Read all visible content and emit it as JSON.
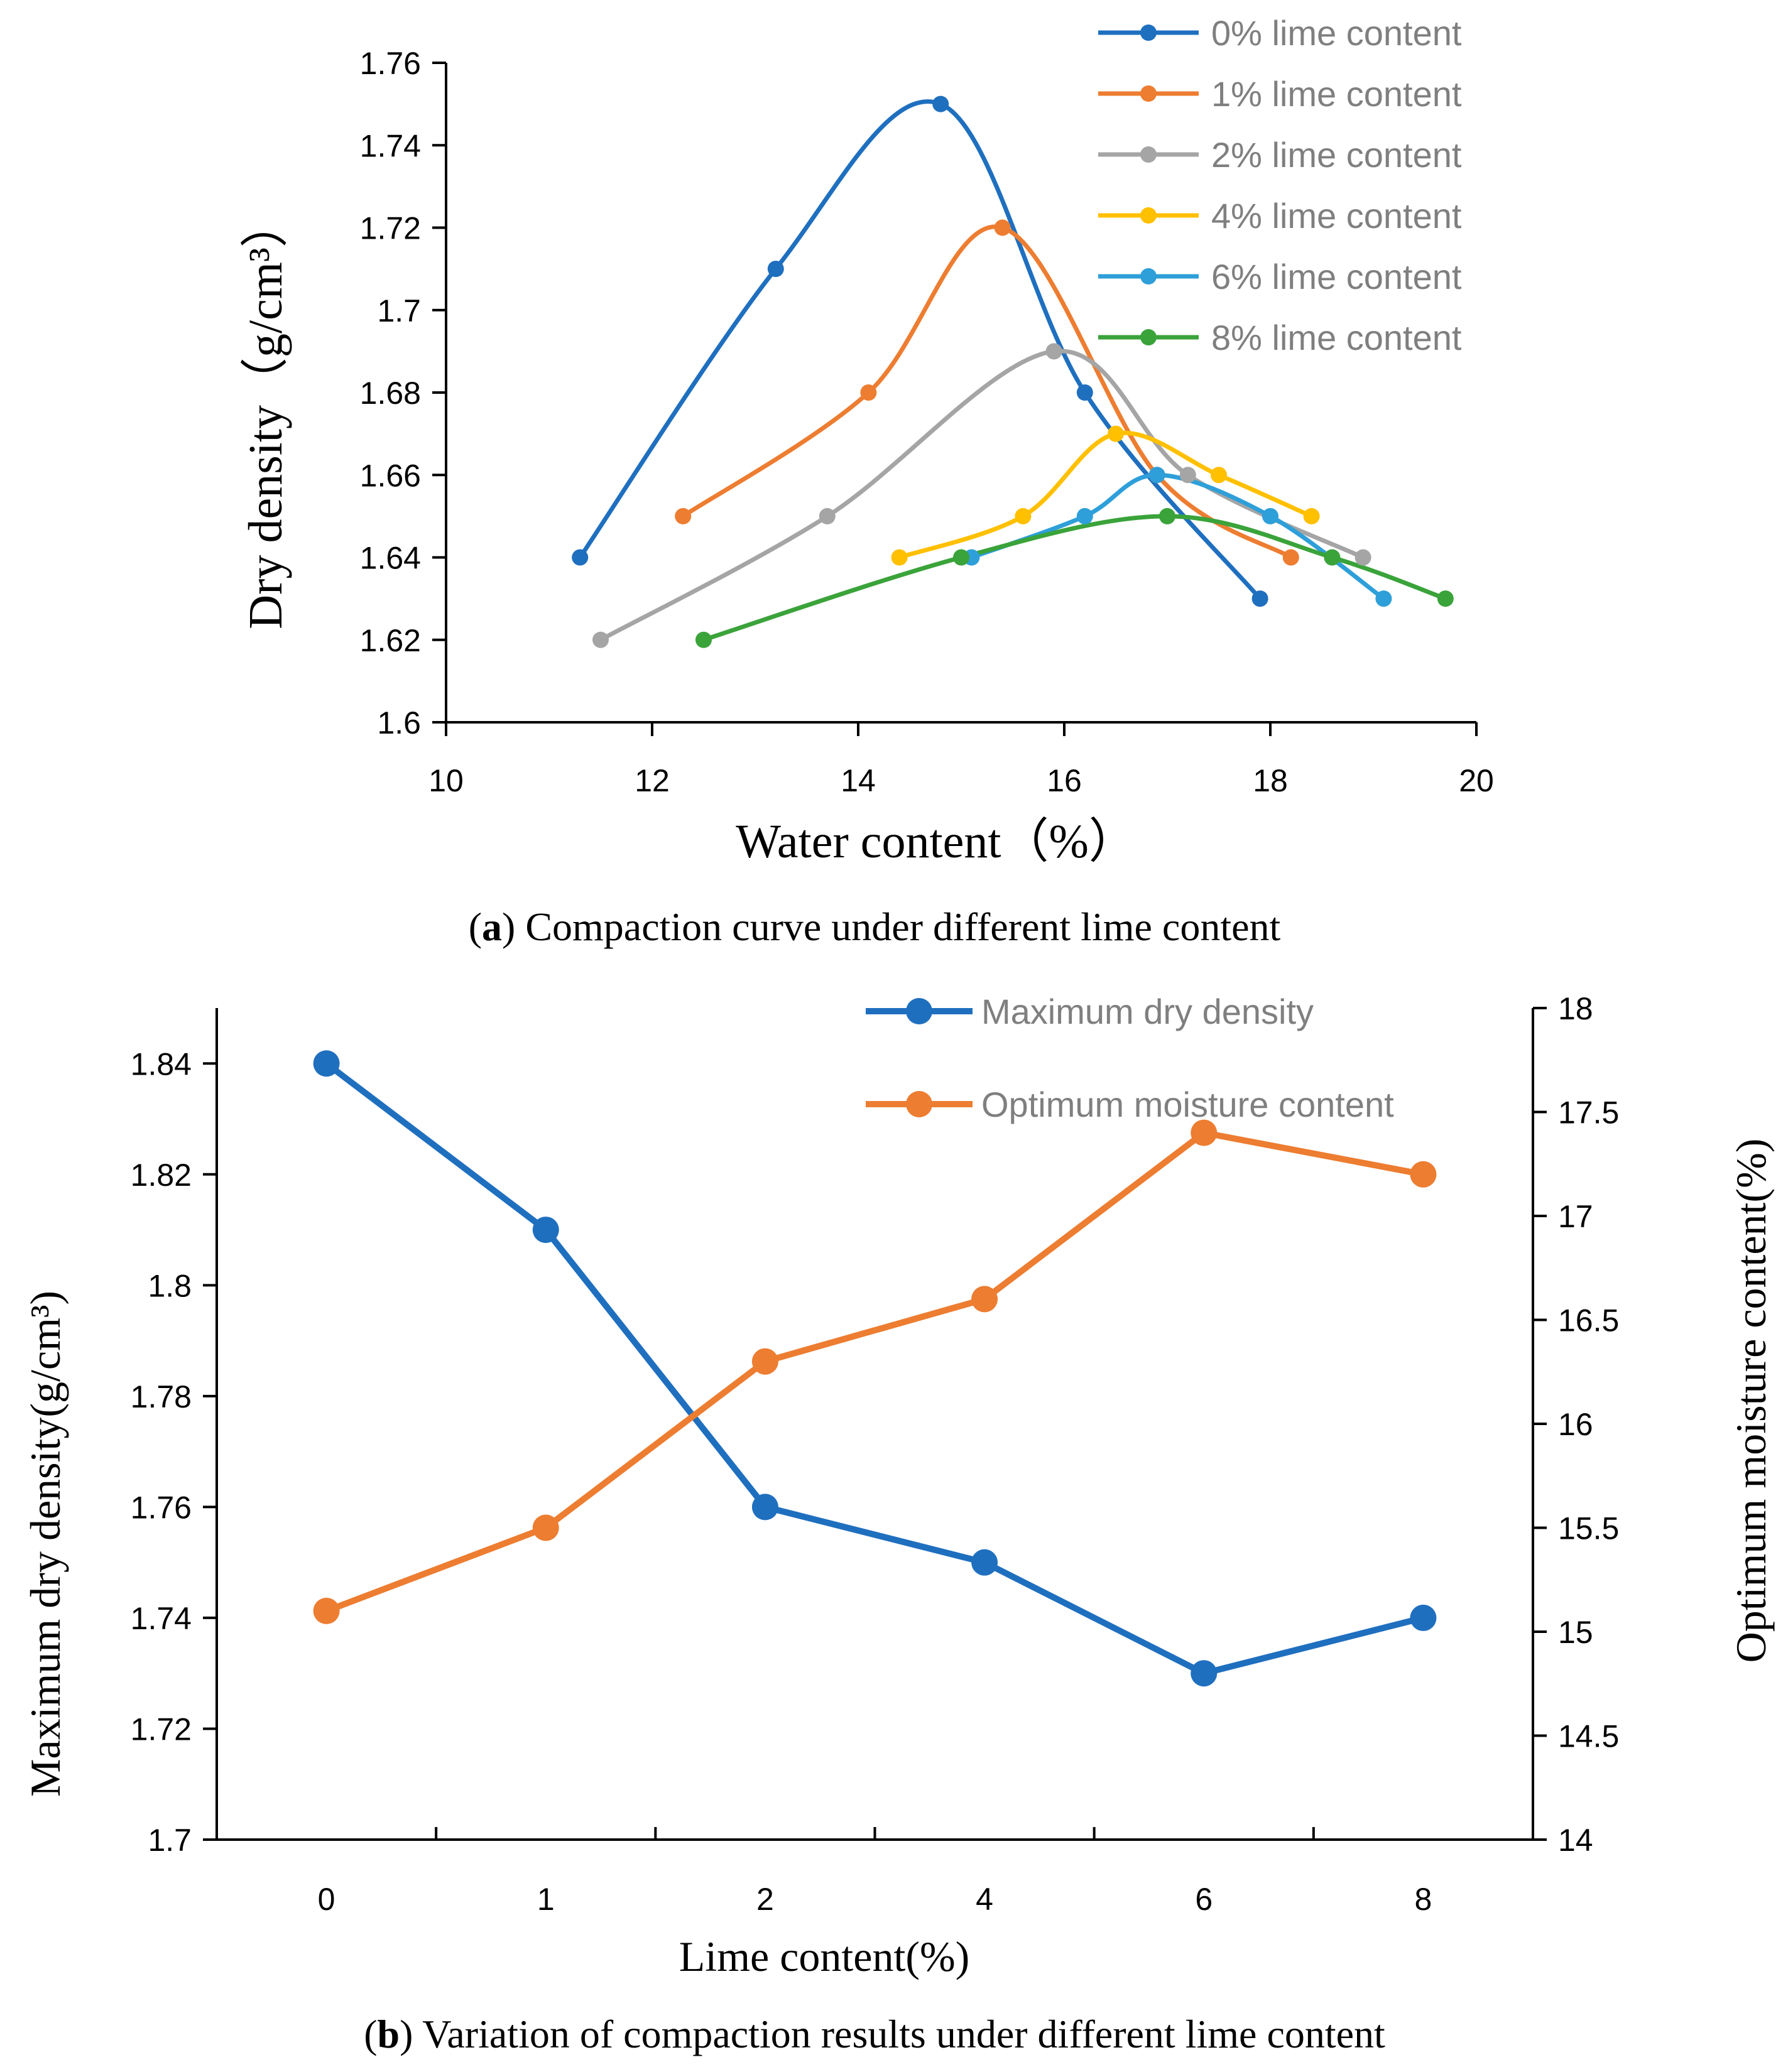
{
  "chart_data": [
    {
      "type": "line",
      "panel": "a",
      "caption_label": "a",
      "caption_text": " Compaction curve under different lime content",
      "xlabel": "Water content（%）",
      "ylabel": "Dry density（g/cm³）",
      "xlim": [
        10,
        20
      ],
      "ylim": [
        1.6,
        1.76
      ],
      "x_ticks": [
        "10",
        "12",
        "14",
        "16",
        "18",
        "20"
      ],
      "y_ticks": [
        "1.6",
        "1.62",
        "1.64",
        "1.66",
        "1.68",
        "1.7",
        "1.72",
        "1.74",
        "1.76"
      ],
      "grid": false,
      "legend_position": "top-right",
      "series": [
        {
          "name": "0% lime content",
          "color": "#1f6fbf",
          "points": [
            [
              11.3,
              1.64
            ],
            [
              13.2,
              1.71
            ],
            [
              14.8,
              1.75
            ],
            [
              16.2,
              1.68
            ],
            [
              17.9,
              1.63
            ]
          ]
        },
        {
          "name": "1% lime content",
          "color": "#ed7d31",
          "points": [
            [
              12.3,
              1.65
            ],
            [
              14.1,
              1.68
            ],
            [
              15.4,
              1.72
            ],
            [
              16.9,
              1.66
            ],
            [
              18.2,
              1.64
            ]
          ]
        },
        {
          "name": "2% lime content",
          "color": "#a5a5a5",
          "points": [
            [
              11.5,
              1.62
            ],
            [
              13.7,
              1.65
            ],
            [
              15.9,
              1.69
            ],
            [
              17.2,
              1.66
            ],
            [
              18.9,
              1.64
            ]
          ]
        },
        {
          "name": "4% lime content",
          "color": "#ffc000",
          "points": [
            [
              14.4,
              1.64
            ],
            [
              15.6,
              1.65
            ],
            [
              16.5,
              1.67
            ],
            [
              17.5,
              1.66
            ],
            [
              18.4,
              1.65
            ]
          ]
        },
        {
          "name": "6% lime content",
          "color": "#2e9fd9",
          "points": [
            [
              15.1,
              1.64
            ],
            [
              16.2,
              1.65
            ],
            [
              16.9,
              1.66
            ],
            [
              18.0,
              1.65
            ],
            [
              19.1,
              1.63
            ]
          ]
        },
        {
          "name": "8% lime content",
          "color": "#3aa33a",
          "points": [
            [
              12.5,
              1.62
            ],
            [
              15.0,
              1.64
            ],
            [
              17.0,
              1.65
            ],
            [
              18.6,
              1.64
            ],
            [
              19.7,
              1.63
            ]
          ]
        }
      ]
    },
    {
      "type": "line",
      "panel": "b",
      "caption_label": "b",
      "caption_text": " Variation of compaction results under different lime content",
      "xlabel": "Lime content(%)",
      "ylabel": "Maximum dry density(g/cm³)",
      "ylabel_right": "Optimum moisture content(%)",
      "categories": [
        "0",
        "1",
        "2",
        "4",
        "6",
        "8"
      ],
      "ylim": [
        1.7,
        1.85
      ],
      "ylim_right": [
        14,
        18
      ],
      "y_ticks": [
        "1.7",
        "1.72",
        "1.74",
        "1.76",
        "1.78",
        "1.8",
        "1.82",
        "1.84"
      ],
      "y_ticks_right": [
        "14",
        "14.5",
        "15",
        "15.5",
        "16",
        "16.5",
        "17",
        "17.5",
        "18"
      ],
      "grid": false,
      "legend_position": "top-right",
      "series": [
        {
          "name": "Maximum dry density",
          "axis": "left",
          "color": "#1f6fbf",
          "values": [
            1.84,
            1.81,
            1.76,
            1.75,
            1.73,
            1.74
          ]
        },
        {
          "name": "Optimum moisture content",
          "axis": "right",
          "color": "#ed7d31",
          "values": [
            15.1,
            15.5,
            16.3,
            16.6,
            17.4,
            17.2
          ]
        }
      ]
    }
  ]
}
